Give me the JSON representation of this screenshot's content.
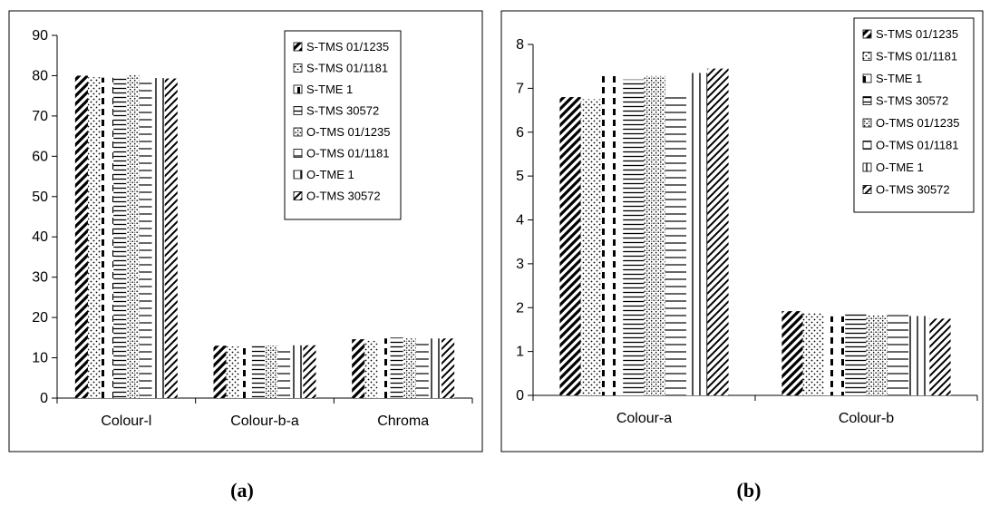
{
  "chart_data": [
    {
      "type": "bar",
      "panel_label": "(a)",
      "categories": [
        "Colour-l",
        "Colour-b-a",
        "Chroma"
      ],
      "ylim": [
        0,
        90
      ],
      "yticks": [
        0,
        10,
        20,
        30,
        40,
        50,
        60,
        70,
        80,
        90
      ],
      "grid": false,
      "legend_position": "top-right",
      "series": [
        {
          "name": "S-TMS 01/1235",
          "values": [
            80,
            13,
            14.6
          ]
        },
        {
          "name": "S-TMS 01/1181",
          "values": [
            79.6,
            12.8,
            14.2
          ]
        },
        {
          "name": "S-TME 1",
          "values": [
            79.5,
            13.1,
            14.8
          ]
        },
        {
          "name": "S-TMS 30572",
          "values": [
            79.8,
            13.2,
            15
          ]
        },
        {
          "name": "O-TMS 01/1235",
          "values": [
            80.2,
            13,
            14.8
          ]
        },
        {
          "name": "O-TMS 01/1181",
          "values": [
            79,
            12.7,
            14.3
          ]
        },
        {
          "name": "O-TME 1",
          "values": [
            79.4,
            13.1,
            14.8
          ]
        },
        {
          "name": "O-TMS 30572",
          "values": [
            79.3,
            13.1,
            14.8
          ]
        }
      ]
    },
    {
      "type": "bar",
      "panel_label": "(b)",
      "categories": [
        "Colour-a",
        "Colour-b"
      ],
      "ylim": [
        0,
        8
      ],
      "yticks": [
        0,
        1,
        2,
        3,
        4,
        5,
        6,
        7,
        8
      ],
      "grid": false,
      "legend_position": "top-right",
      "series": [
        {
          "name": "S-TMS 01/1235",
          "values": [
            6.8,
            1.92
          ]
        },
        {
          "name": "S-TMS 01/1181",
          "values": [
            6.75,
            1.88
          ]
        },
        {
          "name": "S-TME 1",
          "values": [
            7.35,
            1.8
          ]
        },
        {
          "name": "S-TMS 30572",
          "values": [
            7.2,
            1.86
          ]
        },
        {
          "name": "O-TMS 01/1235",
          "values": [
            7.28,
            1.84
          ]
        },
        {
          "name": "O-TMS 01/1181",
          "values": [
            6.9,
            1.83
          ]
        },
        {
          "name": "O-TME 1",
          "values": [
            7.35,
            1.81
          ]
        },
        {
          "name": "O-TMS 30572",
          "values": [
            7.45,
            1.75
          ]
        }
      ]
    }
  ]
}
